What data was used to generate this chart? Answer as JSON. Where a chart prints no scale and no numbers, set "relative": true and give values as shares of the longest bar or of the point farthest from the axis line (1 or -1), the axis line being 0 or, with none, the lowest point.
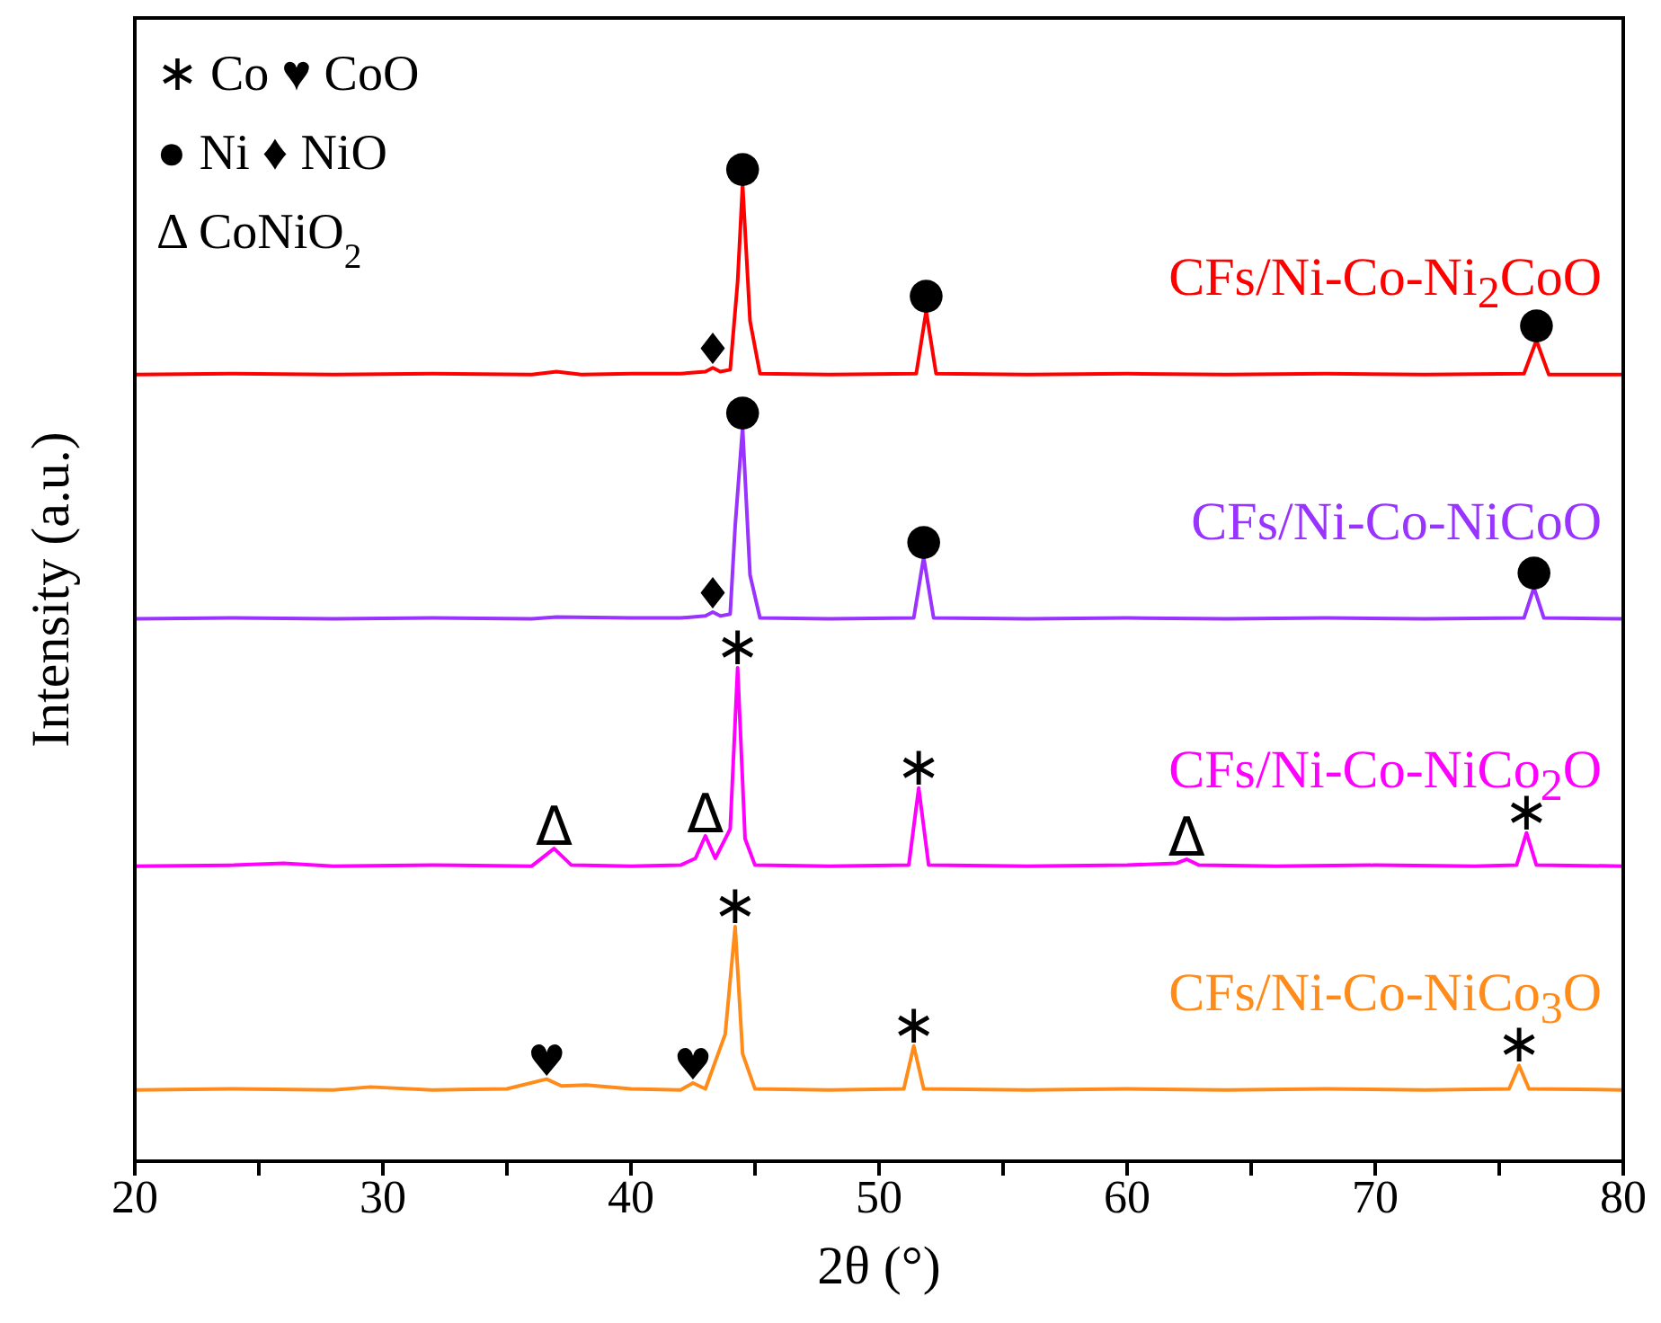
{
  "chart_data": {
    "type": "line",
    "relative": true,
    "xlabel": "2θ (°)",
    "ylabel": "Intensity (a.u.)",
    "marker": "none",
    "line_style": "solid",
    "xlim": [
      20,
      80
    ],
    "xticks": [
      20,
      {
        "value": 25,
        "label": null
      },
      30,
      {
        "value": 35,
        "label": null
      },
      40,
      {
        "value": 45,
        "label": null
      },
      50,
      {
        "value": 55,
        "label": null
      },
      60,
      {
        "value": 65,
        "label": null
      },
      70,
      {
        "value": 75,
        "label": null
      },
      80
    ],
    "series": [
      {
        "name": "CFs/Ni-Co-Ni$_{2}$CoO",
        "color": "#ff0000",
        "x": [
          20,
          24,
          28,
          32,
          36,
          37,
          38,
          40,
          42,
          43,
          43.3,
          43.6,
          44,
          44.3,
          44.5,
          44.8,
          45.2,
          48,
          51.5,
          51.9,
          52.3,
          56,
          60,
          64,
          68,
          72,
          76,
          76.5,
          77,
          80
        ],
        "values": [
          0.805,
          0.806,
          0.805,
          0.806,
          0.805,
          0.808,
          0.805,
          0.806,
          0.806,
          0.808,
          0.812,
          0.808,
          0.81,
          0.9,
          1.0,
          0.86,
          0.806,
          0.805,
          0.806,
          0.87,
          0.806,
          0.805,
          0.806,
          0.805,
          0.806,
          0.805,
          0.806,
          0.84,
          0.805,
          0.805
        ]
      },
      {
        "name": "CFs/Ni-Co-NiCoO",
        "color": "#9933ff",
        "x": [
          20,
          24,
          28,
          32,
          36,
          37,
          40,
          42,
          43,
          43.3,
          43.6,
          44,
          44.2,
          44.5,
          44.8,
          45.2,
          48,
          51.4,
          51.8,
          52.2,
          56,
          60,
          64,
          68,
          72,
          76,
          76.4,
          76.8,
          80
        ],
        "values": [
          0.555,
          0.556,
          0.555,
          0.556,
          0.555,
          0.557,
          0.556,
          0.556,
          0.558,
          0.562,
          0.558,
          0.56,
          0.65,
          0.751,
          0.6,
          0.556,
          0.555,
          0.556,
          0.618,
          0.556,
          0.555,
          0.556,
          0.555,
          0.556,
          0.555,
          0.556,
          0.587,
          0.556,
          0.555
        ]
      },
      {
        "name": "CFs/Ni-Co-NiCo$_{2}$O",
        "color": "#ff00ff",
        "x": [
          20,
          24,
          26,
          28,
          32,
          36,
          36.9,
          37.6,
          40,
          42,
          42.6,
          43,
          43.4,
          44,
          44.3,
          44.6,
          45,
          48,
          51.2,
          51.6,
          52,
          56,
          60,
          62,
          62.4,
          62.9,
          66,
          70,
          74,
          75.7,
          76.1,
          76.5,
          80
        ],
        "values": [
          0.302,
          0.303,
          0.305,
          0.302,
          0.303,
          0.302,
          0.32,
          0.303,
          0.302,
          0.303,
          0.31,
          0.333,
          0.31,
          0.34,
          0.505,
          0.33,
          0.303,
          0.302,
          0.303,
          0.382,
          0.303,
          0.302,
          0.303,
          0.305,
          0.309,
          0.303,
          0.302,
          0.303,
          0.302,
          0.303,
          0.336,
          0.303,
          0.302
        ]
      },
      {
        "name": "CFs/Ni-Co-NiCo$_{3}$O",
        "color": "#ff8c1a",
        "x": [
          20,
          24,
          28,
          29.5,
          32,
          35,
          36.6,
          37.2,
          38.2,
          40,
          42,
          42.5,
          43,
          43.8,
          44.2,
          44.5,
          45,
          48,
          51,
          51.4,
          51.8,
          56,
          60,
          64,
          68,
          72,
          75.4,
          75.8,
          76.2,
          80
        ],
        "values": [
          0.073,
          0.074,
          0.073,
          0.076,
          0.073,
          0.074,
          0.084,
          0.077,
          0.078,
          0.074,
          0.073,
          0.08,
          0.074,
          0.13,
          0.24,
          0.11,
          0.074,
          0.073,
          0.074,
          0.118,
          0.074,
          0.073,
          0.074,
          0.073,
          0.074,
          0.073,
          0.074,
          0.098,
          0.074,
          0.073
        ]
      }
    ],
    "annotations": [
      "∗ Co ♥ CoO",
      "● Ni ♦ NiO",
      "Δ CoNiO$_{2}$",
      {
        "text": "●",
        "x": 44.5,
        "y": 1.0
      },
      {
        "text": "●",
        "x": 51.9,
        "y": 0.87
      },
      {
        "text": "●",
        "x": 76.5,
        "y": 0.84
      },
      {
        "text": "♦",
        "x": 43.3,
        "y": 0.812
      },
      {
        "text": "●",
        "x": 44.5,
        "y": 0.751
      },
      {
        "text": "●",
        "x": 51.8,
        "y": 0.618
      },
      {
        "text": "●",
        "x": 76.4,
        "y": 0.587
      },
      {
        "text": "♦",
        "x": 43.3,
        "y": 0.562
      },
      {
        "text": "∗",
        "x": 44.3,
        "y": 0.505
      },
      {
        "text": "∗",
        "x": 51.6,
        "y": 0.382
      },
      {
        "text": "∗",
        "x": 76.1,
        "y": 0.336
      },
      {
        "text": "Δ",
        "x": 36.9,
        "y": 0.32
      },
      {
        "text": "Δ",
        "x": 43,
        "y": 0.333
      },
      {
        "text": "Δ",
        "x": 62.4,
        "y": 0.309
      },
      {
        "text": "∗",
        "x": 44.2,
        "y": 0.24
      },
      {
        "text": "∗",
        "x": 51.4,
        "y": 0.118
      },
      {
        "text": "∗",
        "x": 75.8,
        "y": 0.098
      },
      {
        "text": "♥",
        "x": 36.6,
        "y": 0.084
      },
      {
        "text": "♥",
        "x": 42.5,
        "y": 0.08
      }
    ]
  }
}
